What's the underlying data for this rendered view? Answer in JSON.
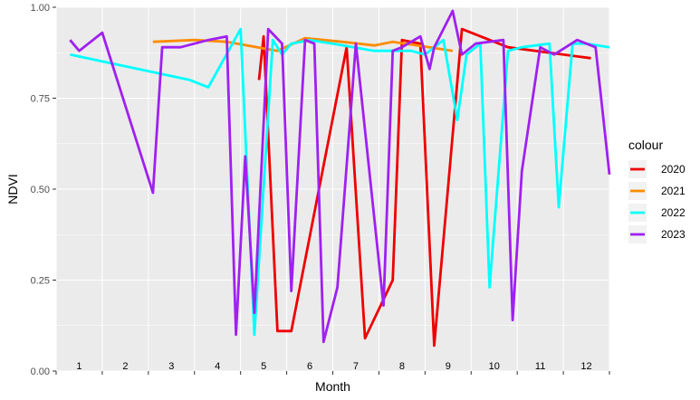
{
  "chart_data": {
    "type": "line",
    "xlabel": "Month",
    "ylabel": "NDVI",
    "ylim": [
      0,
      1
    ],
    "xlim": [
      0.5,
      12.5
    ],
    "yticks": [
      "0.00",
      "0.25",
      "0.50",
      "0.75",
      "1.00"
    ],
    "x_categories": [
      "1",
      "2",
      "3",
      "4",
      "5",
      "6",
      "7",
      "8",
      "9",
      "10",
      "11",
      "12"
    ],
    "grid": true,
    "legend_title": "colour",
    "legend_position": "right",
    "series": [
      {
        "name": "2020",
        "color": "#ee0000",
        "x": [
          4.9,
          5.0,
          5.3,
          5.6,
          6.8,
          7.2,
          7.8,
          8.0,
          8.4,
          8.7,
          9.3,
          10.3,
          12.1
        ],
        "y": [
          0.8,
          0.92,
          0.11,
          0.11,
          0.89,
          0.09,
          0.25,
          0.91,
          0.9,
          0.07,
          0.94,
          0.89,
          0.86
        ]
      },
      {
        "name": "2021",
        "color": "#ff8c00",
        "x": [
          2.6,
          3.5,
          4.2,
          5.3,
          5.9,
          6.7,
          7.4,
          7.8,
          8.6,
          9.1
        ],
        "y": [
          0.905,
          0.91,
          0.905,
          0.88,
          0.915,
          0.905,
          0.895,
          0.905,
          0.89,
          0.88
        ]
      },
      {
        "name": "2022",
        "color": "#00ffff",
        "x": [
          0.8,
          3.4,
          3.8,
          4.5,
          4.8,
          5.2,
          5.4,
          5.6,
          6.0,
          6.5,
          7.4,
          7.8,
          8.2,
          8.5,
          8.9,
          9.2,
          9.4,
          9.7,
          9.9,
          10.3,
          10.6,
          11.2,
          11.4,
          11.7,
          12.0,
          12.5
        ],
        "y": [
          0.87,
          0.8,
          0.78,
          0.94,
          0.1,
          0.91,
          0.87,
          0.9,
          0.91,
          0.9,
          0.88,
          0.88,
          0.88,
          0.87,
          0.91,
          0.69,
          0.87,
          0.9,
          0.23,
          0.88,
          0.89,
          0.9,
          0.45,
          0.9,
          0.9,
          0.89
        ]
      },
      {
        "name": "2023",
        "color": "#a020f0",
        "x": [
          0.8,
          1.0,
          1.5,
          2.6,
          2.8,
          3.2,
          3.8,
          4.2,
          4.4,
          4.6,
          4.8,
          5.1,
          5.4,
          5.6,
          5.9,
          6.1,
          6.3,
          6.6,
          7.0,
          7.6,
          7.8,
          8.0,
          8.4,
          8.6,
          8.7,
          9.1,
          9.3,
          9.6,
          10.2,
          10.4,
          10.6,
          11.0,
          11.3,
          11.8,
          12.0,
          12.2,
          12.5
        ],
        "y": [
          0.91,
          0.88,
          0.93,
          0.49,
          0.89,
          0.89,
          0.91,
          0.92,
          0.1,
          0.59,
          0.16,
          0.94,
          0.9,
          0.22,
          0.91,
          0.9,
          0.08,
          0.23,
          0.9,
          0.18,
          0.88,
          0.89,
          0.92,
          0.83,
          0.89,
          0.99,
          0.87,
          0.9,
          0.91,
          0.14,
          0.55,
          0.89,
          0.87,
          0.91,
          0.9,
          0.89,
          0.54
        ]
      }
    ]
  }
}
